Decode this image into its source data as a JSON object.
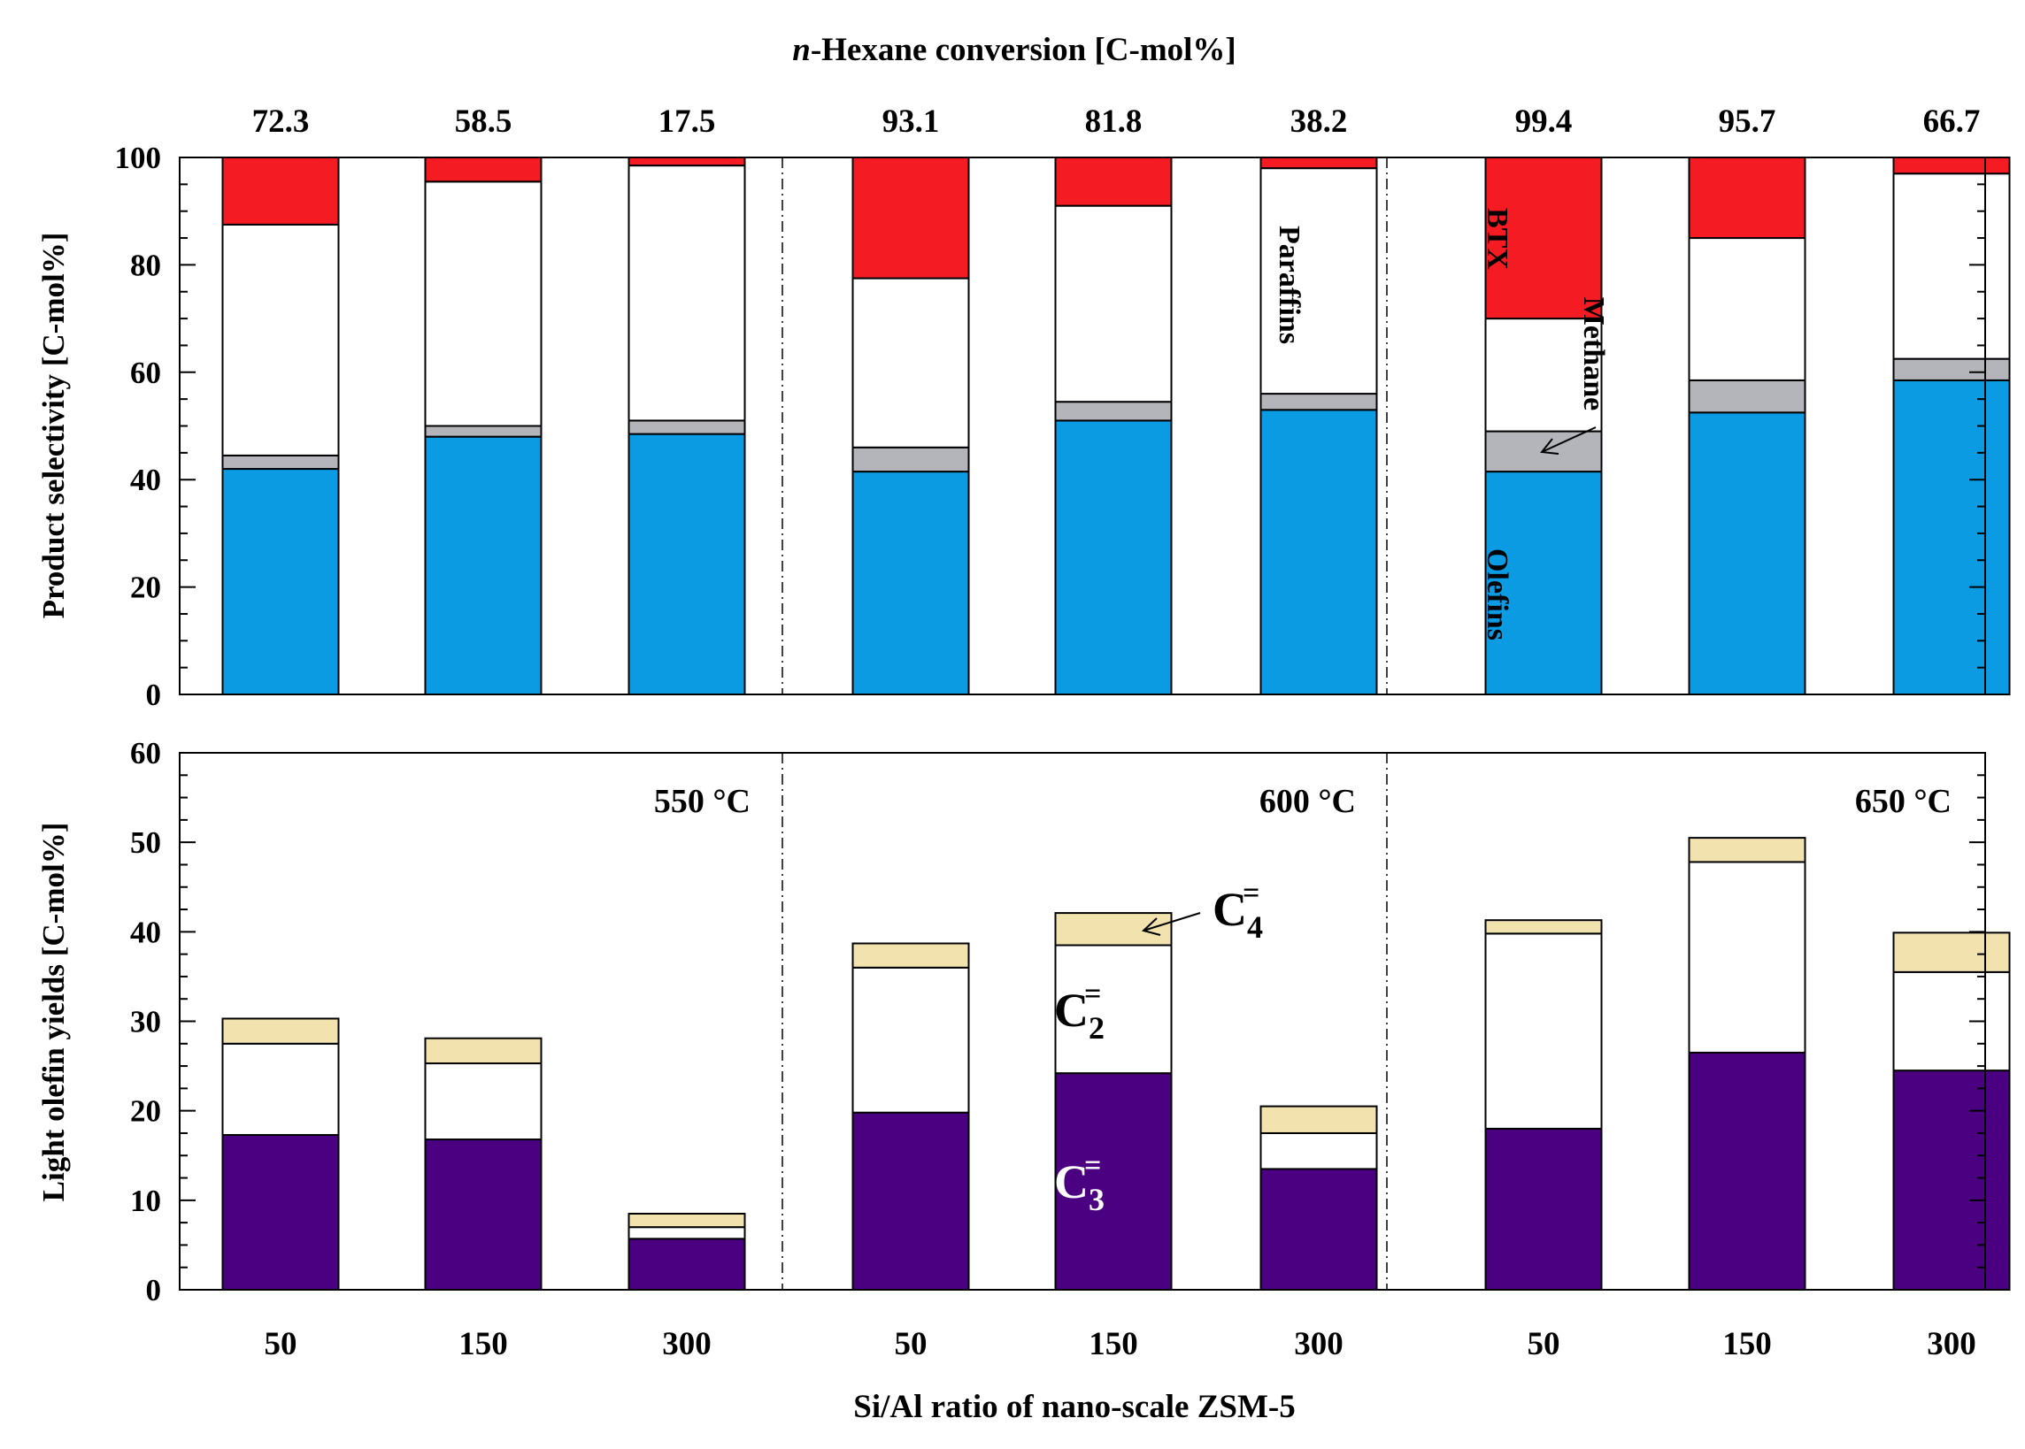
{
  "chart_data": [
    {
      "type": "bar",
      "stacked": true,
      "title": "n-Hexane conversion [C-mol%]",
      "title_italic_part": "n",
      "title_rest": "-Hexane conversion [C-mol%]",
      "ylabel": "Product selectivity [C-mol%]",
      "ylim": [
        0,
        100
      ],
      "yticks": [
        0,
        20,
        40,
        60,
        80,
        100
      ],
      "conversion_labels": [
        "72.3",
        "58.5",
        "17.5",
        "93.1",
        "81.8",
        "38.2",
        "99.4",
        "95.7",
        "66.7"
      ],
      "series": [
        {
          "name": "Olefins",
          "color": "#0a9be3",
          "values": [
            42,
            48,
            48.5,
            41.5,
            51,
            53,
            41.5,
            52.5,
            58.5
          ]
        },
        {
          "name": "Methane",
          "color": "#b4b4bb",
          "values": [
            2.5,
            2,
            2.5,
            4.5,
            3.5,
            3,
            7.5,
            6,
            4
          ]
        },
        {
          "name": "Paraffins",
          "color": "#ffffff",
          "values": [
            43,
            45.5,
            47.5,
            31.5,
            36.5,
            42,
            21,
            26.5,
            34.5
          ]
        },
        {
          "name": "BTX",
          "color": "#f51b22",
          "values": [
            12.5,
            4.5,
            1.5,
            22.5,
            9,
            2,
            30,
            15,
            3
          ]
        }
      ],
      "annotations": {
        "btx": "BTX",
        "paraffins": "Paraffins",
        "methane": "Methane",
        "olefins": "Olefins"
      }
    },
    {
      "type": "bar",
      "stacked": true,
      "xlabel": "Si/Al ratio of nano-scale ZSM-5",
      "ylabel": "Light olefin yields [C-mol%]",
      "ylim": [
        0,
        60
      ],
      "yticks": [
        0,
        10,
        20,
        30,
        40,
        50,
        60
      ],
      "categories": [
        "50",
        "150",
        "300",
        "50",
        "150",
        "300",
        "50",
        "150",
        "300"
      ],
      "groups": [
        "550 °C",
        "600 °C",
        "650 °C"
      ],
      "series": [
        {
          "name": "C3=",
          "color": "#4a0080",
          "values": [
            17.3,
            16.8,
            5.7,
            19.8,
            24.2,
            13.5,
            18,
            26.5,
            24.5
          ]
        },
        {
          "name": "C2=",
          "color": "#ffffff",
          "values": [
            10.2,
            8.5,
            1.3,
            16.2,
            14.3,
            4,
            21.8,
            21.3,
            11
          ]
        },
        {
          "name": "C4=",
          "color": "#f2e3ae",
          "values": [
            2.8,
            2.8,
            1.5,
            2.7,
            3.6,
            3,
            1.5,
            2.7,
            4.4
          ]
        }
      ],
      "annotations": {
        "c4_base": "C",
        "c4_sub": "4",
        "c4_sup": "=",
        "c2_base": "C",
        "c2_sub": "2",
        "c2_sup": "=",
        "c3_base": "C",
        "c3_sub": "3",
        "c3_sup": "="
      }
    }
  ]
}
